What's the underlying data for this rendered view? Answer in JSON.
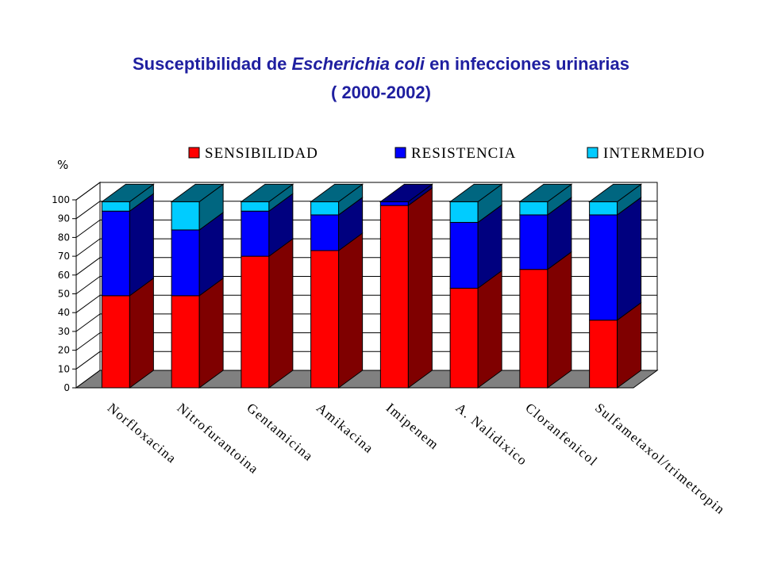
{
  "title": {
    "pre": "Susceptibilidad de ",
    "italic": "Escherichia coli",
    "post": "   en infecciones urinarias",
    "line2": "( 2000-2002)"
  },
  "chart_data": {
    "type": "bar",
    "stacked": true,
    "three_d": true,
    "ylabel": "%",
    "ylim": [
      0,
      100
    ],
    "yticks": [
      0,
      10,
      20,
      30,
      40,
      50,
      60,
      70,
      80,
      90,
      100
    ],
    "grid": true,
    "legend_position": "top",
    "categories": [
      "Norfloxacina",
      "Nitrofurantoina",
      "Gentamicina",
      "Amikacina",
      "Imipenem",
      "A. Nalidixico",
      "Cloranfenicol",
      "Sulfametaxol/trimetropin"
    ],
    "series": [
      {
        "name": "SENSIBILIDAD",
        "color": "#ff0000",
        "side_color": "#7f0000",
        "values": [
          49,
          49,
          70,
          73,
          97,
          53,
          63,
          36
        ]
      },
      {
        "name": "RESISTENCIA",
        "color": "#0000ff",
        "side_color": "#00007f",
        "values": [
          45,
          35,
          24,
          19,
          2,
          35,
          29,
          56
        ]
      },
      {
        "name": "INTERMEDIO",
        "color": "#00ccff",
        "side_color": "#006680",
        "values": [
          5,
          15,
          5,
          7,
          0,
          11,
          7,
          7
        ]
      }
    ]
  }
}
